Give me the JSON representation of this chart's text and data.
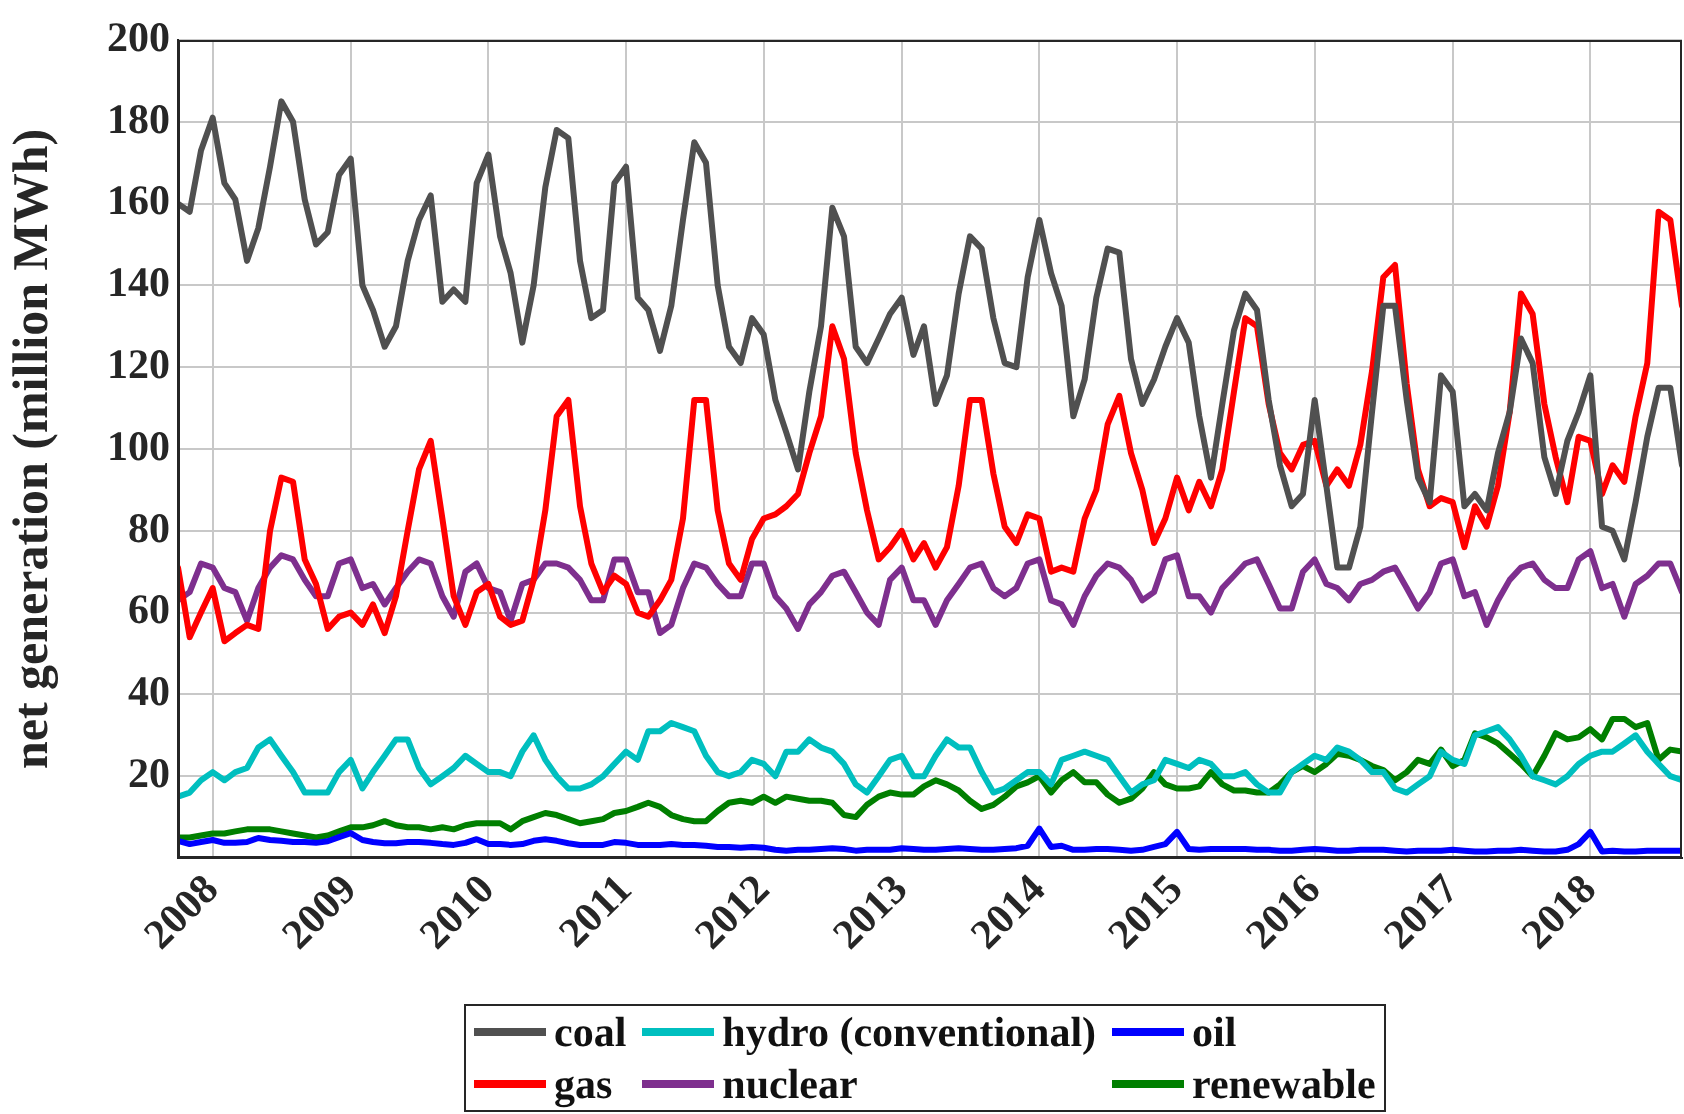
{
  "chart_data": {
    "type": "line",
    "ylabel": "net generation (million MWh)",
    "x": [
      "2007-10",
      "2007-11",
      "2007-12",
      "2008-01",
      "2008-02",
      "2008-03",
      "2008-04",
      "2008-05",
      "2008-06",
      "2008-07",
      "2008-08",
      "2008-09",
      "2008-10",
      "2008-11",
      "2008-12",
      "2009-01",
      "2009-02",
      "2009-03",
      "2009-04",
      "2009-05",
      "2009-06",
      "2009-07",
      "2009-08",
      "2009-09",
      "2009-10",
      "2009-11",
      "2009-12",
      "2010-01",
      "2010-02",
      "2010-03",
      "2010-04",
      "2010-05",
      "2010-06",
      "2010-07",
      "2010-08",
      "2010-09",
      "2010-10",
      "2010-11",
      "2010-12",
      "2011-01",
      "2011-02",
      "2011-03",
      "2011-04",
      "2011-05",
      "2011-06",
      "2011-07",
      "2011-08",
      "2011-09",
      "2011-10",
      "2011-11",
      "2011-12",
      "2012-01",
      "2012-02",
      "2012-03",
      "2012-04",
      "2012-05",
      "2012-06",
      "2012-07",
      "2012-08",
      "2012-09",
      "2012-10",
      "2012-11",
      "2012-12",
      "2013-01",
      "2013-02",
      "2013-03",
      "2013-04",
      "2013-05",
      "2013-06",
      "2013-07",
      "2013-08",
      "2013-09",
      "2013-10",
      "2013-11",
      "2013-12",
      "2014-01",
      "2014-02",
      "2014-03",
      "2014-04",
      "2014-05",
      "2014-06",
      "2014-07",
      "2014-08",
      "2014-09",
      "2014-10",
      "2014-11",
      "2014-12",
      "2015-01",
      "2015-02",
      "2015-03",
      "2015-04",
      "2015-05",
      "2015-06",
      "2015-07",
      "2015-08",
      "2015-09",
      "2015-10",
      "2015-11",
      "2015-12",
      "2016-01",
      "2016-02",
      "2016-03",
      "2016-04",
      "2016-05",
      "2016-06",
      "2016-07",
      "2016-08",
      "2016-09",
      "2016-10",
      "2016-11",
      "2016-12",
      "2017-01",
      "2017-02",
      "2017-03",
      "2017-04",
      "2017-05",
      "2017-06",
      "2017-07",
      "2017-08",
      "2017-09",
      "2017-10",
      "2017-11",
      "2017-12",
      "2018-01",
      "2018-02",
      "2018-03",
      "2018-04",
      "2018-05",
      "2018-06",
      "2018-07",
      "2018-08",
      "2018-09"
    ],
    "series": [
      {
        "name": "coal",
        "color": "#505050",
        "values": [
          160,
          158,
          173,
          181,
          165,
          161,
          146,
          154,
          169,
          185,
          180,
          161,
          150,
          153,
          167,
          171,
          140,
          134,
          125,
          130,
          146,
          156,
          162,
          136,
          139,
          136,
          165,
          172,
          152,
          143,
          126,
          140,
          164,
          178,
          176,
          146,
          132,
          134,
          165,
          169,
          137,
          134,
          124,
          135,
          156,
          175,
          170,
          140,
          125,
          121,
          132,
          128,
          112,
          104,
          95,
          114,
          130,
          159,
          152,
          125,
          121,
          127,
          133,
          137,
          123,
          130,
          111,
          118,
          138,
          152,
          149,
          132,
          121,
          120,
          142,
          156,
          143,
          135,
          108,
          117,
          137,
          149,
          148,
          122,
          111,
          117,
          125,
          132,
          126,
          108,
          93,
          111,
          129,
          138,
          134,
          112,
          96,
          86,
          89,
          112,
          91,
          71,
          71,
          81,
          109,
          135,
          135,
          112,
          93,
          87,
          118,
          114,
          86,
          89,
          85,
          99,
          109,
          127,
          121,
          98,
          89,
          102,
          109,
          118,
          81,
          80,
          73,
          87,
          103,
          115,
          115,
          96
        ]
      },
      {
        "name": "gas",
        "color": "#ff0000",
        "values": [
          71,
          54,
          60,
          66,
          53,
          55,
          57,
          56,
          80,
          93,
          92,
          73,
          67,
          56,
          59,
          60,
          57,
          62,
          55,
          64,
          80,
          95,
          102,
          83,
          64,
          57,
          65,
          67,
          59,
          57,
          58,
          68,
          85,
          108,
          112,
          86,
          72,
          65,
          69,
          67,
          60,
          59,
          63,
          68,
          83,
          112,
          112,
          85,
          72,
          68,
          78,
          83,
          84,
          86,
          89,
          99,
          108,
          130,
          122,
          99,
          85,
          73,
          76,
          80,
          73,
          77,
          71,
          76,
          91,
          112,
          112,
          94,
          81,
          77,
          84,
          83,
          70,
          71,
          70,
          83,
          90,
          106,
          113,
          99,
          90,
          77,
          83,
          93,
          85,
          92,
          86,
          95,
          114,
          132,
          130,
          111,
          99,
          95,
          101,
          102,
          91,
          95,
          91,
          101,
          119,
          142,
          145,
          116,
          95,
          86,
          88,
          87,
          76,
          86,
          81,
          91,
          109,
          138,
          133,
          111,
          98,
          87,
          103,
          102,
          89,
          96,
          92,
          108,
          121,
          158,
          156,
          135
        ]
      },
      {
        "name": "hydro (conventional)",
        "color": "#00bfbf",
        "values": [
          15,
          16,
          19,
          21,
          19,
          21,
          22,
          27,
          29,
          25,
          21,
          16,
          16,
          16,
          21,
          24,
          17,
          21,
          25,
          29,
          29,
          22,
          18,
          20,
          22,
          25,
          23,
          21,
          21,
          20,
          26,
          30,
          24,
          20,
          17,
          17,
          18,
          20,
          23,
          26,
          24,
          31,
          31,
          33,
          32,
          31,
          25,
          21,
          20,
          21,
          24,
          23,
          20,
          26,
          26,
          29,
          27,
          26,
          23,
          18,
          16,
          20,
          24,
          25,
          20,
          20,
          25,
          29,
          27,
          27,
          21,
          16,
          17,
          19,
          21,
          21,
          18,
          24,
          25,
          26,
          25,
          24,
          20,
          16,
          18,
          19,
          24,
          23,
          22,
          24,
          23,
          20,
          20,
          21,
          18,
          16,
          16,
          21,
          23,
          25,
          24,
          27,
          26,
          24,
          21,
          21,
          17,
          16,
          18,
          20,
          26,
          24,
          23,
          30,
          31,
          32,
          29,
          25,
          20,
          19,
          18,
          20,
          23,
          25,
          26,
          26,
          28,
          30,
          26,
          23,
          20,
          19
        ]
      },
      {
        "name": "nuclear",
        "color": "#7e2f8e",
        "values": [
          63,
          65,
          72,
          71,
          66,
          65,
          58,
          66,
          71,
          74,
          73,
          68,
          64,
          64,
          72,
          73,
          66,
          67,
          62,
          66,
          70,
          73,
          72,
          64,
          59,
          70,
          72,
          66,
          65,
          58,
          67,
          68,
          72,
          72,
          71,
          68,
          63,
          63,
          73,
          73,
          65,
          65,
          55,
          57,
          66,
          72,
          71,
          67,
          64,
          64,
          72,
          72,
          64,
          61,
          56,
          62,
          65,
          69,
          70,
          65,
          60,
          57,
          68,
          71,
          63,
          63,
          57,
          63,
          67,
          71,
          72,
          66,
          64,
          66,
          72,
          73,
          63,
          62,
          57,
          64,
          69,
          72,
          71,
          68,
          63,
          65,
          73,
          74,
          64,
          64,
          60,
          66,
          69,
          72,
          73,
          67,
          61,
          61,
          70,
          73,
          67,
          66,
          63,
          67,
          68,
          70,
          71,
          66,
          61,
          65,
          72,
          73,
          64,
          65,
          57,
          63,
          68,
          71,
          72,
          68,
          66,
          66,
          73,
          75,
          66,
          67,
          59,
          67,
          69,
          72,
          72,
          65
        ]
      },
      {
        "name": "oil",
        "color": "#0000ff",
        "values": [
          4.2,
          3.4,
          3.9,
          4.4,
          3.7,
          3.7,
          3.9,
          4.9,
          4.4,
          4.2,
          3.9,
          3.9,
          3.7,
          4.1,
          5.1,
          6.1,
          4.4,
          3.9,
          3.6,
          3.6,
          3.9,
          3.9,
          3.7,
          3.4,
          3.2,
          3.7,
          4.6,
          3.4,
          3.4,
          3.2,
          3.4,
          4.2,
          4.6,
          4.2,
          3.6,
          3.2,
          3.2,
          3.2,
          3.9,
          3.7,
          3.2,
          3.2,
          3.2,
          3.4,
          3.2,
          3.2,
          3,
          2.7,
          2.7,
          2.5,
          2.7,
          2.5,
          2,
          1.8,
          2,
          2,
          2.2,
          2.4,
          2.2,
          1.8,
          2,
          2,
          2,
          2.4,
          2.2,
          2,
          2,
          2.2,
          2.4,
          2.2,
          2,
          2,
          2.2,
          2.4,
          3,
          7.2,
          2.7,
          3,
          2,
          2,
          2.2,
          2.2,
          2,
          1.8,
          2,
          2.7,
          3.4,
          6.4,
          2.2,
          2,
          2.2,
          2.2,
          2.2,
          2.2,
          2,
          2,
          1.8,
          1.8,
          2,
          2.2,
          2,
          1.8,
          1.8,
          2,
          2,
          2,
          1.8,
          1.6,
          1.8,
          1.8,
          1.8,
          2,
          1.8,
          1.6,
          1.6,
          1.8,
          1.8,
          2,
          1.8,
          1.6,
          1.6,
          2,
          3.4,
          6.4,
          1.6,
          1.8,
          1.6,
          1.6,
          1.8,
          1.8,
          1.8,
          1.8
        ]
      },
      {
        "name": "renewable",
        "color": "#007f00",
        "values": [
          5,
          5,
          5.5,
          6,
          6,
          6.5,
          7,
          7,
          7,
          6.5,
          6,
          5.5,
          5,
          5.5,
          6.5,
          7.5,
          7.5,
          8,
          9,
          8,
          7.5,
          7.5,
          7,
          7.5,
          7,
          8,
          8.5,
          8.5,
          8.5,
          7,
          9,
          10,
          11,
          10.5,
          9.5,
          8.5,
          9,
          9.5,
          11,
          11.5,
          12.5,
          13.5,
          12.5,
          10.5,
          9.5,
          9,
          9,
          11.5,
          13.5,
          14,
          13.5,
          15,
          13.5,
          15,
          14.5,
          14,
          14,
          13.5,
          10.5,
          10,
          13,
          15,
          16,
          15.5,
          15.5,
          17.5,
          19,
          18,
          16.5,
          14,
          12,
          13,
          15,
          17.5,
          18.5,
          20,
          16,
          19,
          21,
          18.5,
          18.5,
          15.5,
          13.5,
          14.5,
          17,
          21,
          18,
          17,
          17,
          17.5,
          21,
          18,
          16.5,
          16.5,
          16,
          16,
          18,
          21,
          22.5,
          21,
          23,
          25.5,
          25,
          24,
          22.5,
          21.5,
          19,
          21,
          24,
          23,
          26.5,
          22.5,
          24,
          30.5,
          29.5,
          28,
          25.5,
          23,
          20,
          25,
          30.5,
          29,
          29.5,
          31.5,
          29,
          34,
          34,
          32,
          33,
          24,
          26.5,
          26
        ]
      }
    ],
    "xlim": [
      "2007-10",
      "2018-09"
    ],
    "xticks": [
      "2008",
      "2009",
      "2010",
      "2011",
      "2012",
      "2013",
      "2014",
      "2015",
      "2016",
      "2017",
      "2018"
    ],
    "ylim": [
      0,
      200
    ],
    "yticks": [
      20,
      40,
      60,
      80,
      100,
      120,
      140,
      160,
      180,
      200
    ],
    "grid": true,
    "legend": "bottom",
    "marker": "none",
    "line_style": "solid"
  }
}
